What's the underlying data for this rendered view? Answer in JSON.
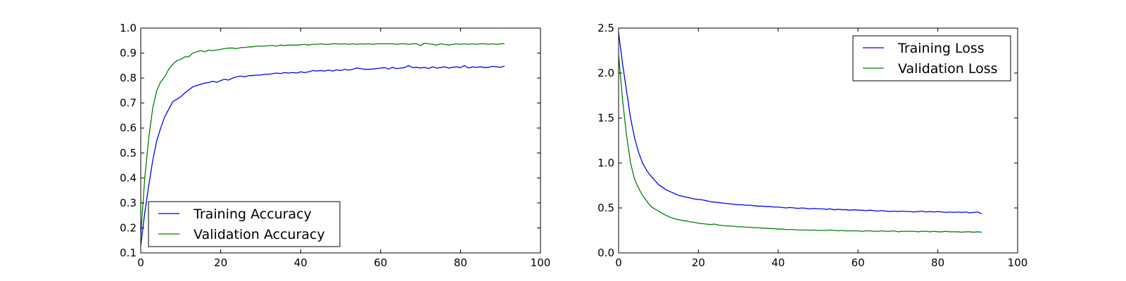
{
  "chart_data": [
    {
      "type": "line",
      "title": "",
      "xlabel": "",
      "ylabel": "",
      "xlim": [
        0,
        100
      ],
      "ylim": [
        0.1,
        1.0
      ],
      "xticks": [
        0,
        20,
        40,
        60,
        80,
        100
      ],
      "yticks": [
        0.1,
        0.2,
        0.3,
        0.4,
        0.5,
        0.6,
        0.7,
        0.8,
        0.9,
        1.0
      ],
      "xtick_labels": [
        "0",
        "20",
        "40",
        "60",
        "80",
        "100"
      ],
      "ytick_labels": [
        "0.1",
        "0.2",
        "0.3",
        "0.4",
        "0.5",
        "0.6",
        "0.7",
        "0.8",
        "0.9",
        "1.0"
      ],
      "grid": false,
      "legend_position": "lower-left",
      "series": [
        {
          "name": "Training Accuracy",
          "color": "#0000ff",
          "x": [
            0,
            1,
            2,
            3,
            4,
            5,
            6,
            7,
            8,
            9,
            10,
            11,
            12,
            13,
            14,
            15,
            16,
            17,
            18,
            19,
            20,
            21,
            22,
            23,
            24,
            25,
            26,
            27,
            28,
            29,
            30,
            31,
            32,
            33,
            34,
            35,
            36,
            37,
            38,
            39,
            40,
            41,
            42,
            43,
            44,
            45,
            46,
            47,
            48,
            49,
            50,
            51,
            52,
            53,
            54,
            55,
            56,
            57,
            58,
            59,
            60,
            61,
            62,
            63,
            64,
            65,
            66,
            67,
            68,
            69,
            70,
            71,
            72,
            73,
            74,
            75,
            76,
            77,
            78,
            79,
            80,
            81,
            82,
            83,
            84,
            85,
            86,
            87,
            88,
            89,
            90,
            91
          ],
          "y": [
            0.13,
            0.26,
            0.37,
            0.47,
            0.55,
            0.6,
            0.645,
            0.675,
            0.705,
            0.715,
            0.725,
            0.74,
            0.752,
            0.765,
            0.77,
            0.775,
            0.78,
            0.782,
            0.787,
            0.783,
            0.79,
            0.795,
            0.792,
            0.8,
            0.805,
            0.808,
            0.805,
            0.81,
            0.81,
            0.812,
            0.812,
            0.815,
            0.815,
            0.818,
            0.82,
            0.818,
            0.822,
            0.82,
            0.822,
            0.82,
            0.825,
            0.822,
            0.825,
            0.83,
            0.828,
            0.83,
            0.828,
            0.832,
            0.828,
            0.833,
            0.83,
            0.835,
            0.832,
            0.835,
            0.84,
            0.838,
            0.835,
            0.835,
            0.836,
            0.838,
            0.84,
            0.842,
            0.836,
            0.843,
            0.838,
            0.84,
            0.842,
            0.85,
            0.842,
            0.843,
            0.84,
            0.843,
            0.838,
            0.845,
            0.84,
            0.842,
            0.845,
            0.84,
            0.843,
            0.845,
            0.842,
            0.85,
            0.84,
            0.845,
            0.843,
            0.845,
            0.842,
            0.843,
            0.847,
            0.845,
            0.843,
            0.848
          ]
        },
        {
          "name": "Validation Accuracy",
          "color": "#008000",
          "x": [
            0,
            1,
            2,
            3,
            4,
            5,
            6,
            7,
            8,
            9,
            10,
            11,
            12,
            13,
            14,
            15,
            16,
            17,
            18,
            19,
            20,
            21,
            22,
            23,
            24,
            25,
            26,
            27,
            28,
            29,
            30,
            31,
            32,
            33,
            34,
            35,
            36,
            37,
            38,
            39,
            40,
            41,
            42,
            43,
            44,
            45,
            46,
            47,
            48,
            49,
            50,
            51,
            52,
            53,
            54,
            55,
            56,
            57,
            58,
            59,
            60,
            61,
            62,
            63,
            64,
            65,
            66,
            67,
            68,
            69,
            70,
            71,
            72,
            73,
            74,
            75,
            76,
            77,
            78,
            79,
            80,
            81,
            82,
            83,
            84,
            85,
            86,
            87,
            88,
            89,
            90,
            91
          ],
          "y": [
            0.17,
            0.4,
            0.56,
            0.68,
            0.75,
            0.785,
            0.805,
            0.835,
            0.855,
            0.87,
            0.875,
            0.885,
            0.885,
            0.9,
            0.905,
            0.91,
            0.905,
            0.912,
            0.91,
            0.912,
            0.915,
            0.918,
            0.92,
            0.92,
            0.918,
            0.922,
            0.922,
            0.925,
            0.925,
            0.928,
            0.928,
            0.928,
            0.93,
            0.93,
            0.928,
            0.932,
            0.93,
            0.932,
            0.932,
            0.932,
            0.933,
            0.935,
            0.932,
            0.935,
            0.935,
            0.937,
            0.935,
            0.935,
            0.937,
            0.937,
            0.936,
            0.937,
            0.935,
            0.937,
            0.935,
            0.937,
            0.936,
            0.937,
            0.935,
            0.937,
            0.937,
            0.937,
            0.937,
            0.937,
            0.935,
            0.937,
            0.937,
            0.935,
            0.937,
            0.937,
            0.93,
            0.94,
            0.937,
            0.935,
            0.932,
            0.937,
            0.935,
            0.932,
            0.935,
            0.937,
            0.935,
            0.937,
            0.935,
            0.937,
            0.935,
            0.937,
            0.937,
            0.935,
            0.937,
            0.935,
            0.937,
            0.938
          ]
        }
      ]
    },
    {
      "type": "line",
      "title": "",
      "xlabel": "",
      "ylabel": "",
      "xlim": [
        0,
        100
      ],
      "ylim": [
        0.0,
        2.5
      ],
      "xticks": [
        0,
        20,
        40,
        60,
        80,
        100
      ],
      "yticks": [
        0.0,
        0.5,
        1.0,
        1.5,
        2.0,
        2.5
      ],
      "xtick_labels": [
        "0",
        "20",
        "40",
        "60",
        "80",
        "100"
      ],
      "ytick_labels": [
        "0.0",
        "0.5",
        "1.0",
        "1.5",
        "2.0",
        "2.5"
      ],
      "grid": false,
      "legend_position": "upper-right",
      "series": [
        {
          "name": "Training Loss",
          "color": "#0000ff",
          "x": [
            0,
            1,
            2,
            3,
            4,
            5,
            6,
            7,
            8,
            9,
            10,
            11,
            12,
            13,
            14,
            15,
            16,
            17,
            18,
            19,
            20,
            21,
            22,
            23,
            24,
            25,
            26,
            27,
            28,
            29,
            30,
            31,
            32,
            33,
            34,
            35,
            36,
            37,
            38,
            39,
            40,
            41,
            42,
            43,
            44,
            45,
            46,
            47,
            48,
            49,
            50,
            51,
            52,
            53,
            54,
            55,
            56,
            57,
            58,
            59,
            60,
            61,
            62,
            63,
            64,
            65,
            66,
            67,
            68,
            69,
            70,
            71,
            72,
            73,
            74,
            75,
            76,
            77,
            78,
            79,
            80,
            81,
            82,
            83,
            84,
            85,
            86,
            87,
            88,
            89,
            90,
            91
          ],
          "y": [
            2.45,
            2.1,
            1.8,
            1.5,
            1.28,
            1.12,
            1.0,
            0.92,
            0.86,
            0.81,
            0.76,
            0.73,
            0.7,
            0.68,
            0.66,
            0.64,
            0.63,
            0.62,
            0.61,
            0.6,
            0.595,
            0.59,
            0.58,
            0.57,
            0.565,
            0.56,
            0.555,
            0.55,
            0.545,
            0.54,
            0.535,
            0.535,
            0.53,
            0.53,
            0.525,
            0.52,
            0.52,
            0.515,
            0.515,
            0.51,
            0.51,
            0.505,
            0.5,
            0.505,
            0.5,
            0.495,
            0.5,
            0.495,
            0.49,
            0.495,
            0.49,
            0.49,
            0.485,
            0.49,
            0.48,
            0.485,
            0.48,
            0.48,
            0.475,
            0.48,
            0.475,
            0.475,
            0.47,
            0.475,
            0.47,
            0.465,
            0.47,
            0.465,
            0.46,
            0.465,
            0.46,
            0.465,
            0.46,
            0.46,
            0.455,
            0.46,
            0.465,
            0.455,
            0.46,
            0.455,
            0.46,
            0.455,
            0.45,
            0.455,
            0.45,
            0.455,
            0.45,
            0.455,
            0.445,
            0.45,
            0.455,
            0.435
          ]
        },
        {
          "name": "Validation Loss",
          "color": "#008000",
          "x": [
            0,
            1,
            2,
            3,
            4,
            5,
            6,
            7,
            8,
            9,
            10,
            11,
            12,
            13,
            14,
            15,
            16,
            17,
            18,
            19,
            20,
            21,
            22,
            23,
            24,
            25,
            26,
            27,
            28,
            29,
            30,
            31,
            32,
            33,
            34,
            35,
            36,
            37,
            38,
            39,
            40,
            41,
            42,
            43,
            44,
            45,
            46,
            47,
            48,
            49,
            50,
            51,
            52,
            53,
            54,
            55,
            56,
            57,
            58,
            59,
            60,
            61,
            62,
            63,
            64,
            65,
            66,
            67,
            68,
            69,
            70,
            71,
            72,
            73,
            74,
            75,
            76,
            77,
            78,
            79,
            80,
            81,
            82,
            83,
            84,
            85,
            86,
            87,
            88,
            89,
            90,
            91
          ],
          "y": [
            2.2,
            1.7,
            1.3,
            1.0,
            0.82,
            0.72,
            0.64,
            0.58,
            0.52,
            0.49,
            0.465,
            0.44,
            0.415,
            0.395,
            0.38,
            0.37,
            0.36,
            0.355,
            0.345,
            0.34,
            0.33,
            0.325,
            0.32,
            0.315,
            0.32,
            0.31,
            0.305,
            0.3,
            0.3,
            0.295,
            0.29,
            0.29,
            0.285,
            0.285,
            0.28,
            0.28,
            0.275,
            0.275,
            0.27,
            0.27,
            0.265,
            0.265,
            0.26,
            0.26,
            0.26,
            0.255,
            0.255,
            0.255,
            0.25,
            0.255,
            0.25,
            0.25,
            0.25,
            0.255,
            0.25,
            0.245,
            0.25,
            0.245,
            0.245,
            0.245,
            0.245,
            0.24,
            0.245,
            0.245,
            0.24,
            0.24,
            0.245,
            0.24,
            0.24,
            0.245,
            0.235,
            0.24,
            0.24,
            0.24,
            0.24,
            0.235,
            0.24,
            0.24,
            0.235,
            0.24,
            0.235,
            0.235,
            0.24,
            0.235,
            0.235,
            0.235,
            0.23,
            0.235,
            0.235,
            0.23,
            0.235,
            0.23
          ]
        }
      ]
    }
  ]
}
